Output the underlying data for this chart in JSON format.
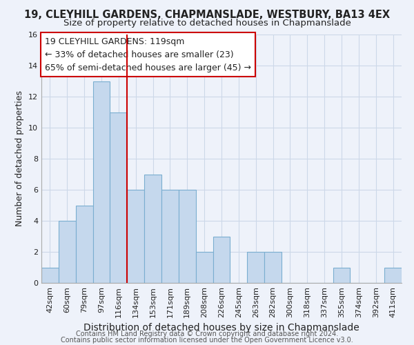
{
  "title1": "19, CLEYHILL GARDENS, CHAPMANSLADE, WESTBURY, BA13 4EX",
  "title2": "Size of property relative to detached houses in Chapmanslade",
  "xlabel": "Distribution of detached houses by size in Chapmanslade",
  "ylabel": "Number of detached properties",
  "categories": [
    "42sqm",
    "60sqm",
    "79sqm",
    "97sqm",
    "116sqm",
    "134sqm",
    "153sqm",
    "171sqm",
    "189sqm",
    "208sqm",
    "226sqm",
    "245sqm",
    "263sqm",
    "282sqm",
    "300sqm",
    "318sqm",
    "337sqm",
    "355sqm",
    "374sqm",
    "392sqm",
    "411sqm"
  ],
  "values": [
    1,
    4,
    5,
    13,
    11,
    6,
    7,
    6,
    6,
    2,
    3,
    0,
    2,
    2,
    0,
    0,
    0,
    1,
    0,
    0,
    1
  ],
  "bar_color": "#c5d8ed",
  "bar_edge_color": "#7aaed0",
  "grid_color": "#ccd8e8",
  "background_color": "#eef2fa",
  "annotation_box_text": "19 CLEYHILL GARDENS: 119sqm\n← 33% of detached houses are smaller (23)\n65% of semi-detached houses are larger (45) →",
  "annotation_box_color": "#ffffff",
  "annotation_box_edge_color": "#cc0000",
  "vline_x_index": 4.5,
  "vline_color": "#cc0000",
  "ylim": [
    0,
    16
  ],
  "yticks": [
    0,
    2,
    4,
    6,
    8,
    10,
    12,
    14,
    16
  ],
  "footer1": "Contains HM Land Registry data © Crown copyright and database right 2024.",
  "footer2": "Contains public sector information licensed under the Open Government Licence v3.0.",
  "title1_fontsize": 10.5,
  "title2_fontsize": 9.5,
  "xlabel_fontsize": 10,
  "ylabel_fontsize": 9,
  "tick_fontsize": 8,
  "footer_fontsize": 7,
  "annotation_fontsize": 9
}
